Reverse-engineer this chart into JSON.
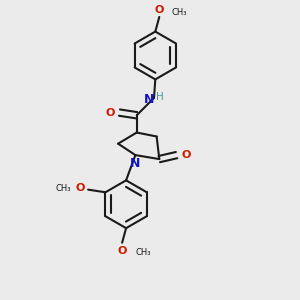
{
  "background_color": "#ebebeb",
  "bond_color": "#1a1a1a",
  "nitrogen_color": "#1414cc",
  "oxygen_color": "#cc1a00",
  "hydrogen_color": "#4a9999",
  "line_width": 1.5,
  "dbo": 0.12,
  "figsize": [
    3.0,
    3.0
  ],
  "dpi": 100,
  "xlim": [
    -3.5,
    3.5
  ],
  "ylim": [
    -5.5,
    5.5
  ]
}
